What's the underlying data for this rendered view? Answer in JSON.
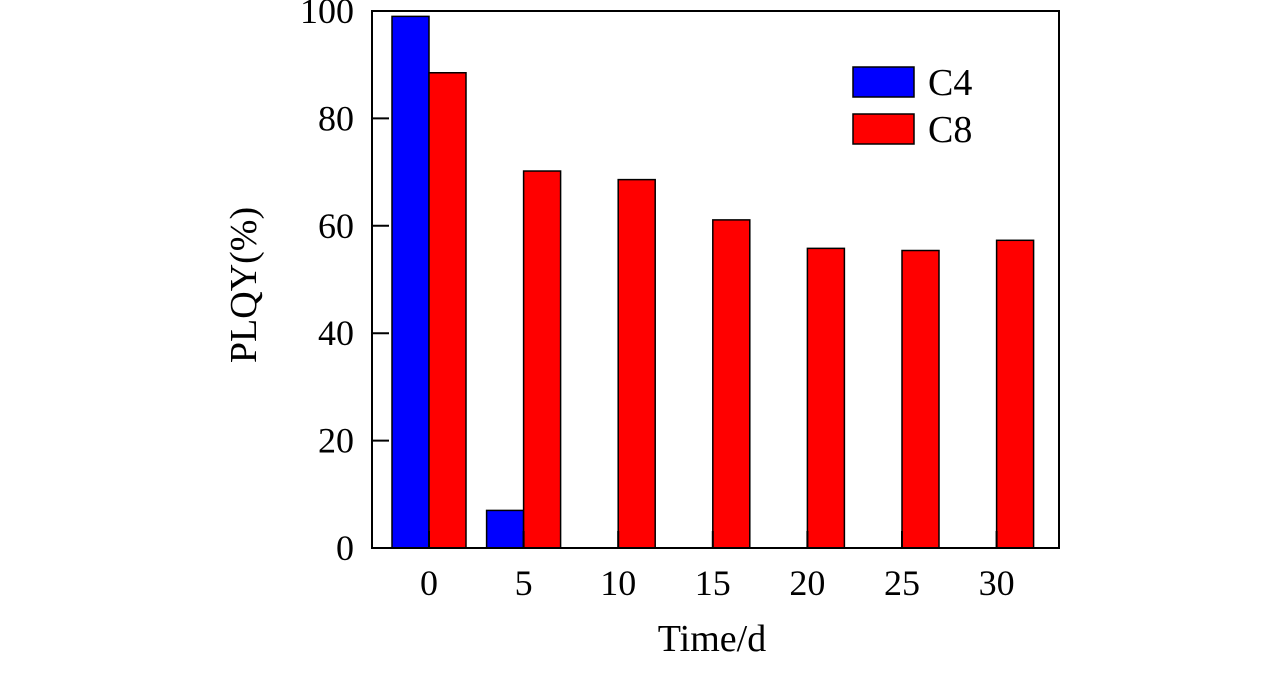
{
  "chart_data": {
    "type": "bar",
    "title": "",
    "xlabel": "Time/d",
    "ylabel": "PLQY(%)",
    "categories": [
      "0",
      "5",
      "10",
      "15",
      "20",
      "25",
      "30"
    ],
    "ylim": [
      0,
      100
    ],
    "yticks": [
      0,
      20,
      40,
      60,
      80,
      100
    ],
    "grid": false,
    "legend_position": "top-right",
    "series": [
      {
        "name": "C4",
        "color": "#0000ff",
        "values": [
          99,
          7,
          0,
          0,
          0,
          0,
          0
        ]
      },
      {
        "name": "C8",
        "color": "#ff0000",
        "values": [
          88.5,
          70.2,
          68.6,
          61.1,
          55.8,
          55.4,
          57.3
        ]
      }
    ]
  }
}
